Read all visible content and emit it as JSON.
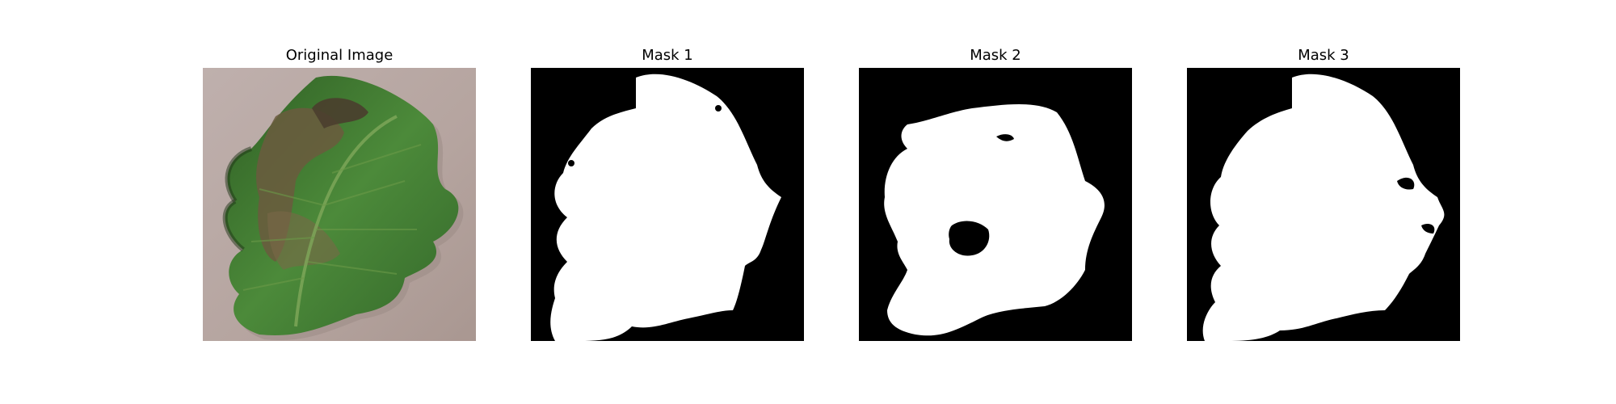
{
  "panels": [
    {
      "title": "Original Image"
    },
    {
      "title": "Mask 1"
    },
    {
      "title": "Mask 2"
    },
    {
      "title": "Mask 3"
    }
  ],
  "colors": {
    "background": "#ffffff",
    "mask_foreground": "#ffffff",
    "mask_background": "#000000",
    "ground": "#b9aaa6",
    "leaf_green": "#3f7a2e",
    "leaf_dark": "#23401c",
    "lesion_brown": "#6b5a3e"
  }
}
